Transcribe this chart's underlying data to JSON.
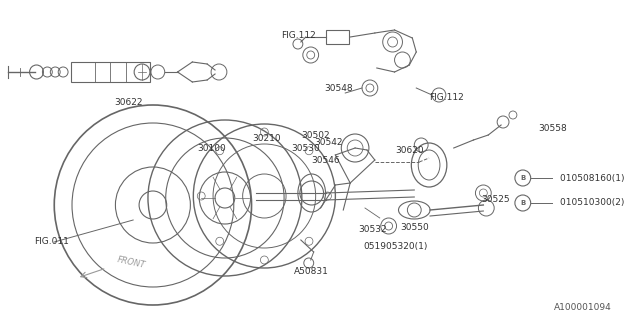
{
  "bg_color": "#ffffff",
  "line_color": "#666666",
  "diagram_id": "A100001094",
  "figsize": [
    6.4,
    3.2
  ],
  "dpi": 100,
  "xlim": [
    0,
    640
  ],
  "ylim": [
    0,
    320
  ]
}
